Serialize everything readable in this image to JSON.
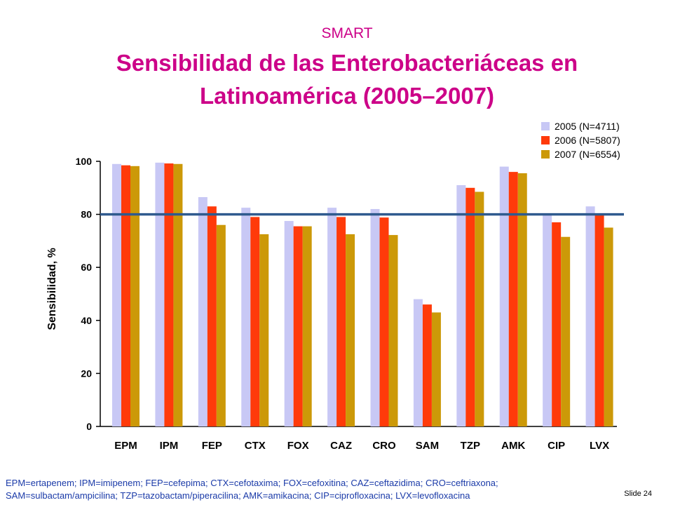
{
  "header": {
    "subtitle": "SMART",
    "title_line1": "Sensibilidad de las Enterobacteriáceas en",
    "title_line2": "Latinoamérica (2005–2007)"
  },
  "chart_data": {
    "type": "bar",
    "categories": [
      "EPM",
      "IPM",
      "FEP",
      "CTX",
      "FOX",
      "CAZ",
      "CRO",
      "SAM",
      "TZP",
      "AMK",
      "CIP",
      "LVX"
    ],
    "series": [
      {
        "name": "2005 (N=4711)",
        "color": "#c8c8f5",
        "values": [
          99,
          99.5,
          86.5,
          82.5,
          77.5,
          82.5,
          82,
          48,
          91,
          98,
          80,
          83
        ]
      },
      {
        "name": "2006 (N=5807)",
        "color": "#ff3a0a",
        "values": [
          98.5,
          99.2,
          83,
          79,
          75.5,
          79,
          78.8,
          46,
          90,
          96,
          77,
          79.8
        ]
      },
      {
        "name": "2007 (N=6554)",
        "color": "#cc9908",
        "values": [
          98.2,
          99,
          76,
          72.5,
          75.5,
          72.5,
          72.2,
          43,
          88.5,
          95.5,
          71.5,
          75
        ]
      }
    ],
    "ylabel": "Sensibilidad, %",
    "yticks": [
      0,
      20,
      40,
      60,
      80,
      100
    ],
    "ylim": [
      0,
      100
    ],
    "reference_line": 80,
    "reference_line_color": "#2f5a8e",
    "legend_position": "top-right"
  },
  "footnote": {
    "line1": "EPM=ertapenem; IPM=imipenem; FEP=cefepima; CTX=cefotaxima; FOX=cefoxitina; CAZ=ceftazidima; CRO=ceftriaxona;",
    "line2": "SAM=sulbactam/ampicilina; TZP=tazobactam/piperacilina; AMK=amikacina; CIP=ciprofloxacina; LVX=levofloxacina"
  },
  "slide_label": "Slide 24"
}
